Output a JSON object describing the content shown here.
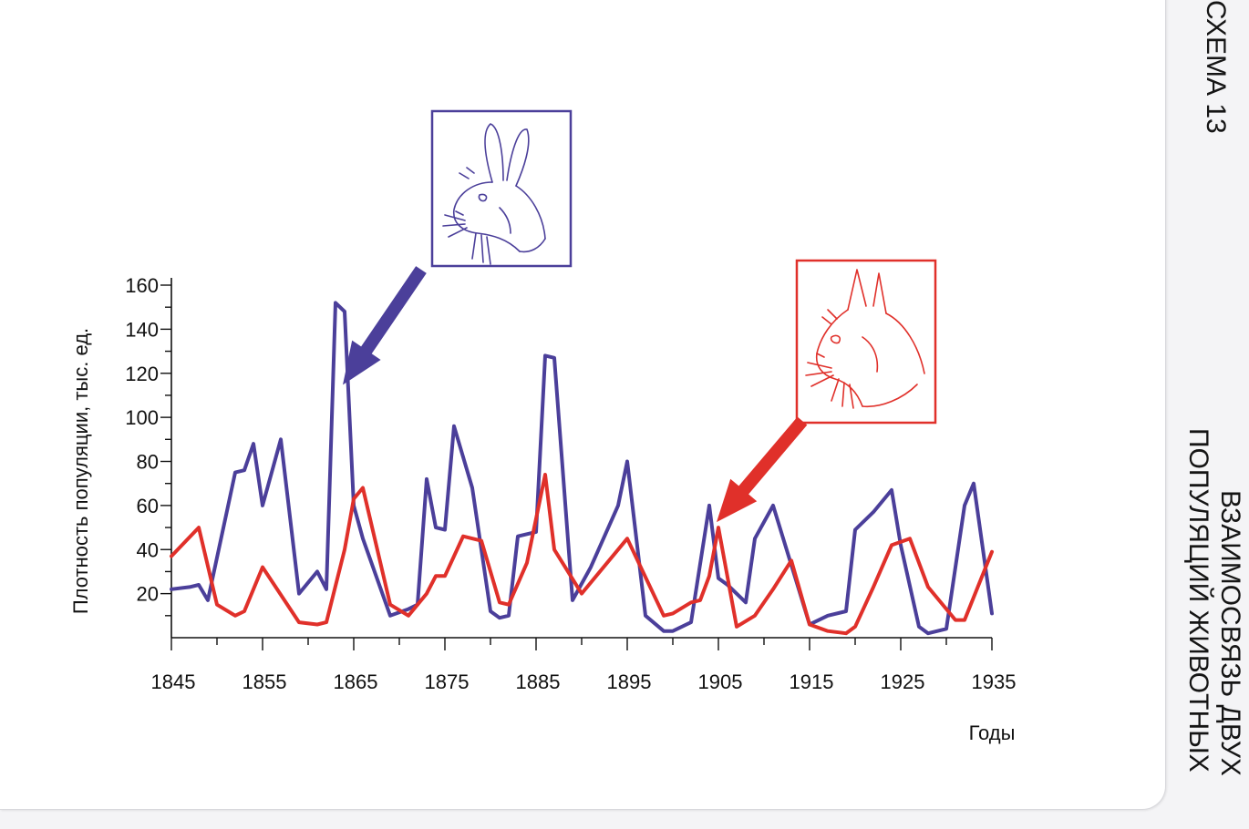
{
  "header": {
    "scheme_label": "СХЕМА 13",
    "title_line1": "ВЗАИМОСВЯЗЬ ДВУХ",
    "title_line2": "ПОПУЛЯЦИЙ ЖИВОТНЫХ"
  },
  "colors": {
    "hare": "#4b3f9a",
    "lynx": "#e0302a",
    "axis": "#111111"
  },
  "icons": {
    "hare": "hare-icon",
    "lynx": "lynx-icon"
  },
  "chart_data": {
    "type": "line",
    "title": "",
    "xlabel": "Годы",
    "ylabel": "Плотность популяции, тыс. ед.",
    "xlim": [
      1845,
      1935
    ],
    "ylim": [
      0,
      160
    ],
    "xticks": [
      1845,
      1855,
      1865,
      1875,
      1885,
      1895,
      1905,
      1915,
      1925,
      1935
    ],
    "xtick_labels": [
      "1845",
      "1855",
      "1865",
      "1875",
      "1885",
      "1895",
      "1905",
      "1915",
      "1925",
      "1935"
    ],
    "yticks": [
      20,
      40,
      60,
      80,
      100,
      120,
      140,
      160
    ],
    "ytick_labels": [
      "20",
      "40",
      "60",
      "80",
      "100",
      "120",
      "140",
      "160"
    ],
    "grid": false,
    "series": [
      {
        "key": "hare",
        "x": [
          1845,
          1847,
          1848,
          1849,
          1852,
          1853,
          1854,
          1855,
          1857,
          1859,
          1861,
          1862,
          1863,
          1864,
          1865,
          1866,
          1869,
          1871,
          1872,
          1873,
          1874,
          1875,
          1876,
          1878,
          1880,
          1881,
          1882,
          1883,
          1885,
          1886,
          1887,
          1889,
          1891,
          1894,
          1895,
          1897,
          1899,
          1900,
          1902,
          1904,
          1905,
          1906,
          1908,
          1909,
          1911,
          1915,
          1917,
          1919,
          1920,
          1922,
          1924,
          1925,
          1927,
          1928,
          1930,
          1932,
          1933,
          1935
        ],
        "y": [
          22,
          23,
          24,
          17,
          75,
          76,
          88,
          60,
          90,
          20,
          30,
          22,
          152,
          148,
          60,
          45,
          10,
          13,
          15,
          72,
          50,
          49,
          96,
          68,
          12,
          9,
          10,
          46,
          48,
          128,
          127,
          17,
          32,
          60,
          80,
          10,
          3,
          3,
          7,
          60,
          27,
          24,
          16,
          45,
          60,
          6,
          10,
          12,
          49,
          57,
          67,
          42,
          5,
          2,
          4,
          60,
          70,
          11
        ]
      },
      {
        "key": "lynx",
        "x": [
          1845,
          1848,
          1850,
          1852,
          1853,
          1855,
          1859,
          1861,
          1862,
          1864,
          1865,
          1866,
          1869,
          1871,
          1873,
          1874,
          1875,
          1877,
          1879,
          1881,
          1882,
          1884,
          1886,
          1887,
          1890,
          1895,
          1899,
          1900,
          1902,
          1903,
          1904,
          1905,
          1907,
          1909,
          1911,
          1913,
          1915,
          1917,
          1919,
          1920,
          1922,
          1924,
          1926,
          1928,
          1931,
          1932,
          1935
        ],
        "y": [
          37,
          50,
          15,
          10,
          12,
          32,
          7,
          6,
          7,
          40,
          63,
          68,
          15,
          10,
          20,
          28,
          28,
          46,
          44,
          16,
          15,
          34,
          74,
          40,
          20,
          45,
          10,
          11,
          16,
          17,
          28,
          50,
          5,
          10,
          22,
          35,
          6,
          3,
          2,
          5,
          23,
          42,
          45,
          23,
          8,
          8,
          39
        ]
      }
    ],
    "annotations": [
      {
        "type": "picture",
        "icon": "hare-icon",
        "points_to": {
          "x": 1863,
          "y": 152
        }
      },
      {
        "type": "picture",
        "icon": "lynx-icon",
        "points_to": {
          "x": 1905,
          "y": 50
        }
      }
    ]
  }
}
